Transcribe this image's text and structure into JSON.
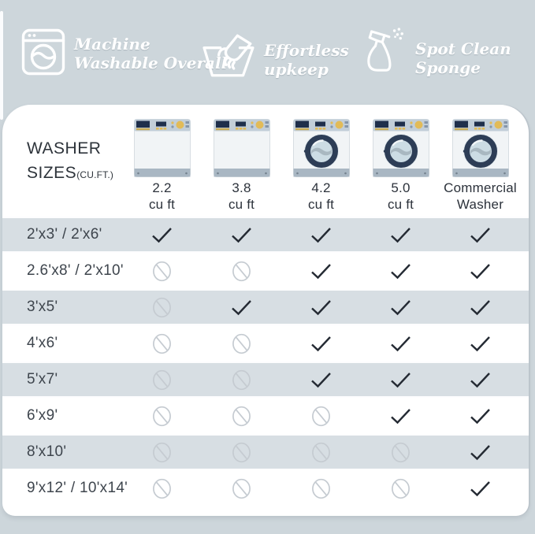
{
  "features": [
    {
      "icon": "washing-machine-icon",
      "lines": [
        "Machine",
        "Washable Overall"
      ]
    },
    {
      "icon": "handwash-icon",
      "lines": [
        "Effortless",
        "upkeep"
      ]
    },
    {
      "icon": "spray-bottle-icon",
      "lines": [
        "Spot Clean",
        "Sponge"
      ]
    }
  ],
  "table": {
    "corner_title": "WASHER",
    "corner_subtitle": "SIZES",
    "corner_unit": "(CU.FT.)",
    "columns": [
      {
        "label_lines": [
          "2.2",
          "cu ft"
        ],
        "washer": "top-load"
      },
      {
        "label_lines": [
          "3.8",
          "cu ft"
        ],
        "washer": "top-load"
      },
      {
        "label_lines": [
          "4.2",
          "cu ft"
        ],
        "washer": "front-load"
      },
      {
        "label_lines": [
          "5.0",
          "cu ft"
        ],
        "washer": "front-load"
      },
      {
        "label_lines": [
          "Commercial",
          "Washer"
        ],
        "washer": "front-load"
      }
    ],
    "rows": [
      {
        "size": "2'x3' / 2'x6'",
        "cells": [
          "yes",
          "yes",
          "yes",
          "yes",
          "yes"
        ]
      },
      {
        "size": "2.6'x8' / 2'x10'",
        "cells": [
          "no",
          "no",
          "yes",
          "yes",
          "yes"
        ]
      },
      {
        "size": "3'x5'",
        "cells": [
          "no",
          "yes",
          "yes",
          "yes",
          "yes"
        ]
      },
      {
        "size": "4'x6'",
        "cells": [
          "no",
          "no",
          "yes",
          "yes",
          "yes"
        ]
      },
      {
        "size": "5'x7'",
        "cells": [
          "no",
          "no",
          "yes",
          "yes",
          "yes"
        ]
      },
      {
        "size": "6'x9'",
        "cells": [
          "no",
          "no",
          "no",
          "yes",
          "yes"
        ]
      },
      {
        "size": "8'x10'",
        "cells": [
          "no",
          "no",
          "no",
          "no",
          "yes"
        ]
      },
      {
        "size": "9'x12' / 10'x14'",
        "cells": [
          "no",
          "no",
          "no",
          "no",
          "yes"
        ]
      }
    ]
  },
  "colors": {
    "background": "#cdd6db",
    "card": "#ffffff",
    "row_shade": "#d7dee3",
    "check": "#242a33",
    "no_sign": "#c5cbd1",
    "heading_text": "#2e343b",
    "banner_text": "#ffffff",
    "washer_panel": "#c2ced8",
    "washer_display": "#1f2f4b",
    "washer_gold": "#e2bb58",
    "washer_ring": "#2d3d56",
    "washer_kick": "#a9b7c3"
  }
}
